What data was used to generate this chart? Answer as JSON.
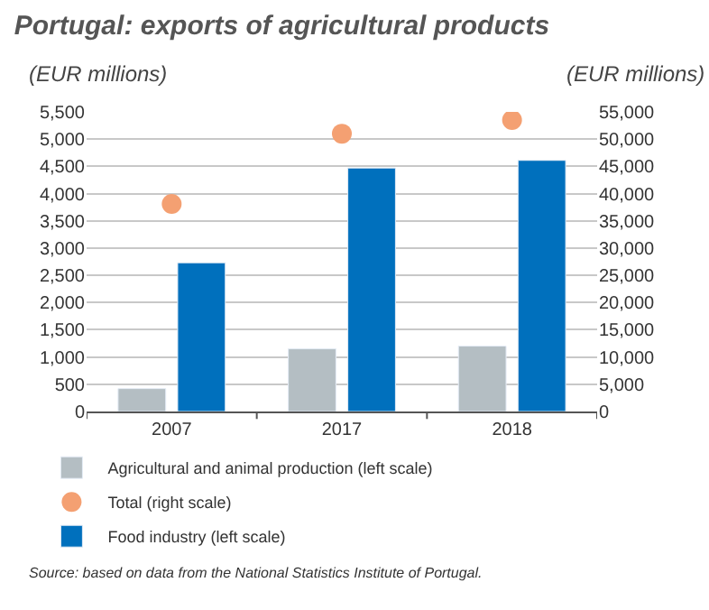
{
  "chart_data": {
    "type": "bar",
    "title": "Portugal: exports of agricultural products",
    "ylabel": "(EUR millions)",
    "y2label": "(EUR millions)",
    "categories": [
      "2007",
      "2017",
      "2018"
    ],
    "series": [
      {
        "name": "Agricultural and animal production (left scale)",
        "color": "#b4bec3",
        "values": [
          420,
          1150,
          1200
        ]
      },
      {
        "name": "Food industry (left scale)",
        "color": "#0070bd",
        "values": [
          2730,
          4470,
          4610
        ]
      },
      {
        "name": "Total (right scale)",
        "type": "scatter",
        "axis": "y2",
        "marker": "circle",
        "color": "#f4a072",
        "values": [
          38100,
          51000,
          53500
        ]
      }
    ],
    "ylim": [
      0,
      5500
    ],
    "yticks": [
      {
        "value": 0,
        "label": "0"
      },
      {
        "value": 500,
        "label": "500"
      },
      {
        "value": 1000,
        "label": "1,000"
      },
      {
        "value": 1500,
        "label": "1,500"
      },
      {
        "value": 2000,
        "label": "2,000"
      },
      {
        "value": 2500,
        "label": "2,500"
      },
      {
        "value": 3000,
        "label": "3,000"
      },
      {
        "value": 3500,
        "label": "3,500"
      },
      {
        "value": 4000,
        "label": "4,000"
      },
      {
        "value": 4500,
        "label": "4,500"
      },
      {
        "value": 5000,
        "label": "5,000"
      },
      {
        "value": 5500,
        "label": "5,500"
      }
    ],
    "y2lim": [
      0,
      55000
    ],
    "y2ticks": [
      {
        "value": 0,
        "label": "0"
      },
      {
        "value": 5000,
        "label": "5,000"
      },
      {
        "value": 10000,
        "label": "10,000"
      },
      {
        "value": 15000,
        "label": "15,000"
      },
      {
        "value": 20000,
        "label": "20,000"
      },
      {
        "value": 25000,
        "label": "25,000"
      },
      {
        "value": 30000,
        "label": "30,000"
      },
      {
        "value": 35000,
        "label": "35,000"
      },
      {
        "value": 40000,
        "label": "40,000"
      },
      {
        "value": 45000,
        "label": "45,000"
      },
      {
        "value": 50000,
        "label": "50,000"
      },
      {
        "value": 55000,
        "label": "55,000"
      }
    ],
    "grid": "y",
    "legend": "bottom",
    "annotations": [
      "Source: based on data from the National Statistics Institute of Portugal."
    ]
  }
}
